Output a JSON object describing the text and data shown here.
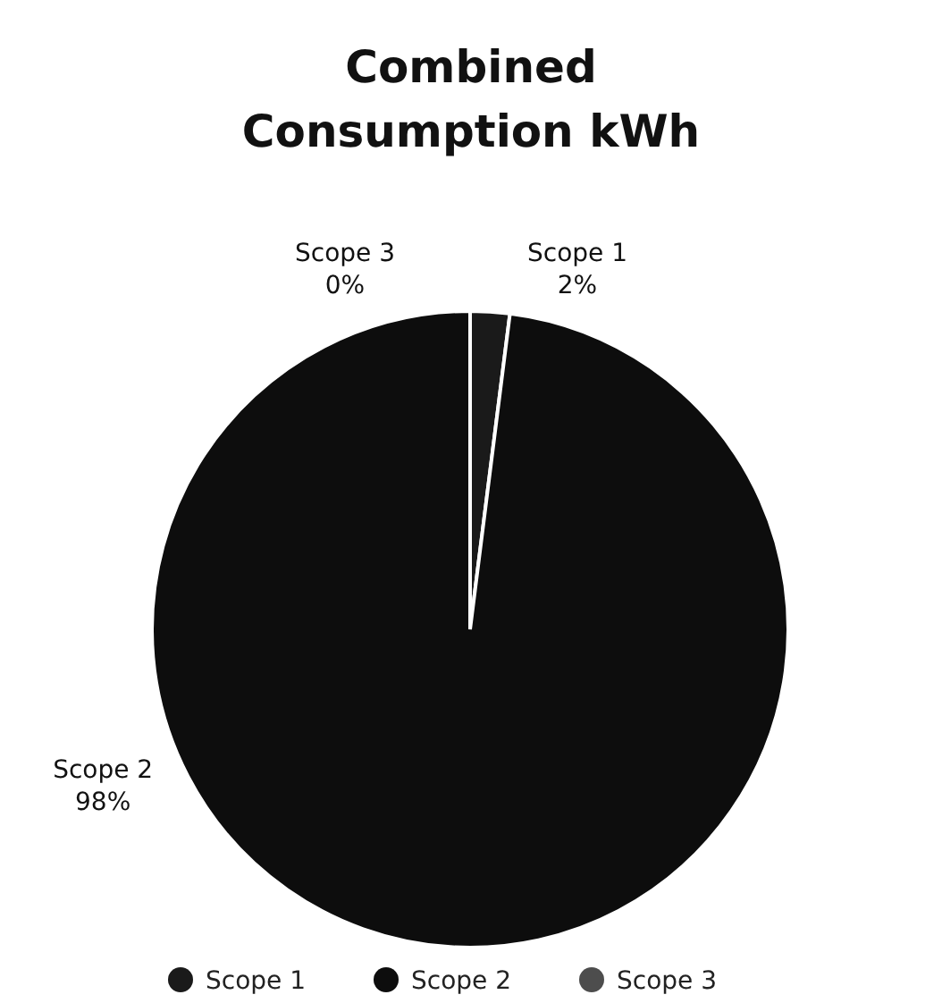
{
  "chart_data": {
    "type": "pie",
    "title": "Combined Consumption kWh",
    "categories": [
      "Scope 1",
      "Scope 2",
      "Scope 3"
    ],
    "values": [
      2,
      98,
      0
    ],
    "value_labels": [
      "2%",
      "98%",
      "0%"
    ],
    "colors": [
      "#1a1a1a",
      "#0d0d0d",
      "#4d4d4d"
    ],
    "legend": "bottom"
  }
}
